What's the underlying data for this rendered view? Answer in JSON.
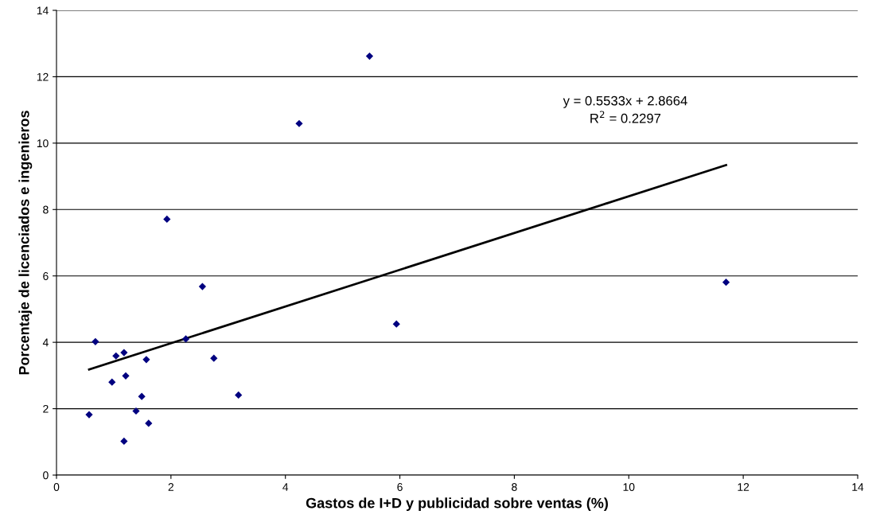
{
  "chart_data": {
    "type": "scatter",
    "xlabel": "Gastos de I+D y publicidad sobre ventas (%)",
    "ylabel": "Porcentaje de licenciados e ingenieros",
    "xlim": [
      0,
      14
    ],
    "ylim": [
      0,
      14
    ],
    "xticks": [
      0,
      2,
      4,
      6,
      8,
      10,
      12,
      14
    ],
    "yticks": [
      0,
      2,
      4,
      6,
      8,
      10,
      12,
      14
    ],
    "grid": "y",
    "series": [
      {
        "color": "#000080",
        "marker": "diamond",
        "x": [
          0.57,
          0.68,
          0.97,
          1.04,
          1.18,
          1.21,
          1.18,
          1.39,
          1.49,
          1.57,
          1.61,
          1.93,
          2.26,
          2.55,
          2.75,
          3.18,
          4.24,
          5.47,
          5.94,
          11.7
        ],
        "values": [
          1.82,
          4.02,
          2.8,
          3.59,
          3.69,
          2.99,
          1.02,
          1.93,
          2.37,
          3.48,
          1.56,
          7.71,
          4.1,
          5.68,
          3.52,
          2.41,
          10.59,
          12.62,
          4.55,
          5.81
        ]
      },
      {
        "type": "line",
        "marker": "none",
        "color": "#000000",
        "x": [
          0.57,
          11.7
        ],
        "values": [
          3.18,
          9.34
        ]
      }
    ],
    "annotations": [
      "y = 0.5533x + 2.8664",
      "R$^{2}$ = 0.2297"
    ]
  }
}
